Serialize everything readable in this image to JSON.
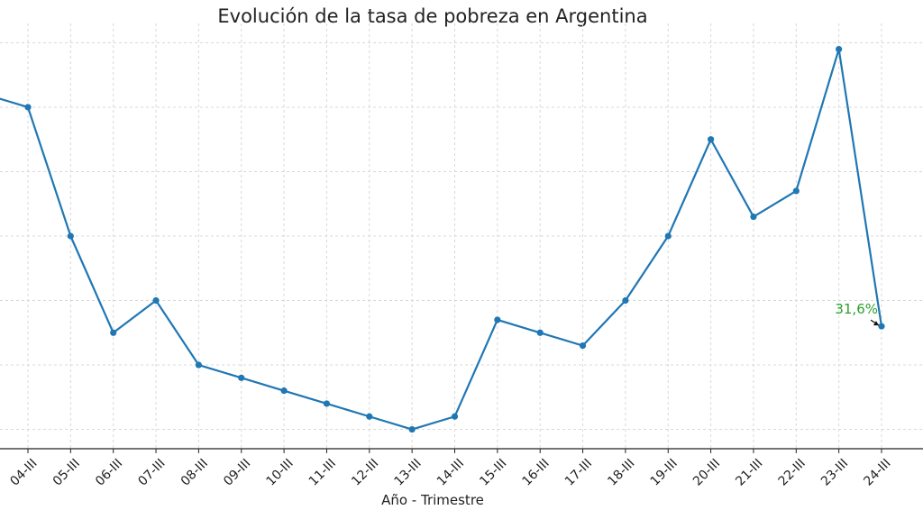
{
  "chart_data": {
    "type": "line",
    "title": "Evolución de la tasa de pobreza en Argentina",
    "xlabel": "Año - Trimestre",
    "ylabel": "",
    "categories": [
      "04-III",
      "05-III",
      "06-III",
      "07-III",
      "08-III",
      "09-III",
      "10-III",
      "11-III",
      "12-III",
      "13-III",
      "14-III",
      "15-III",
      "16-III",
      "17-III",
      "18-III",
      "19-III",
      "20-III",
      "21-III",
      "22-III",
      "23-III",
      "24-III"
    ],
    "series": [
      {
        "values": [
          35.0,
          33.0,
          31.5,
          32.0,
          31.0,
          30.8,
          30.6,
          30.4,
          30.2,
          30.0,
          30.2,
          31.7,
          31.5,
          31.3,
          32.0,
          33.0,
          34.5,
          33.3,
          33.7,
          35.9,
          31.6
        ]
      }
    ],
    "leading_value": 35.2,
    "ylim": [
      29.7,
      36.3
    ],
    "grid": true,
    "annotation": {
      "text": "31,6%",
      "category": "24-III",
      "color": "#2ca02c"
    },
    "line_color": "#1f77b4"
  }
}
